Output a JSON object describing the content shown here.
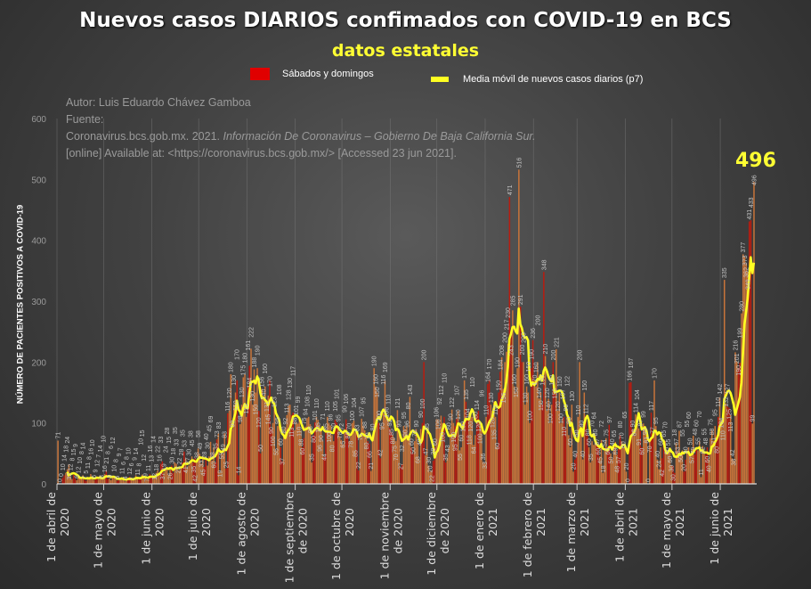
{
  "header": {
    "title": "Nuevos casos DIARIOS confimados con COVID-19 en BCS",
    "subtitle": "datos estatales"
  },
  "legend": {
    "weekend": "Sábados y domingos",
    "moving_avg": "Media móvil de  nuevos casos diarios (p7)"
  },
  "source": {
    "author": "Autor: Luis Eduardo Chávez Gamboa",
    "label": "Fuente:",
    "citation_a": "Coronavirus.bcs.gob.mx. 2021. ",
    "citation_italic": "Información De Coronavirus – Gobierno De Baja California Sur.",
    "citation_b": "[online] Available at: <https://coronavirus.bcs.gob.mx/> [Accessed 23 jun 2021]."
  },
  "annotation": "496",
  "colors": {
    "weekday": "#c8743a",
    "weekend": "#b81c10",
    "line": "#ffff22"
  },
  "chart_data": {
    "type": "bar",
    "title": "Nuevos casos DIARIOS confimados con COVID-19 en BCS",
    "ylabel": "NÚMERO DE PACIENTES POSITIVOS A COVID-19",
    "xlabel": "",
    "ylim": [
      0,
      600
    ],
    "yticks": [
      0,
      100,
      200,
      300,
      400,
      500,
      600
    ],
    "start_date": "2020-04-01",
    "moving_average_window": 7,
    "x_ticks": [
      {
        "day": 0,
        "l1": "1 de abril de",
        "l2": "2020"
      },
      {
        "day": 30,
        "l1": "1 de mayo de",
        "l2": "2020"
      },
      {
        "day": 61,
        "l1": "1 de junio de",
        "l2": "2020"
      },
      {
        "day": 91,
        "l1": "1 de julio de",
        "l2": "2020"
      },
      {
        "day": 122,
        "l1": "1 de agosto de",
        "l2": "2020"
      },
      {
        "day": 153,
        "l1": "1 de septiembre",
        "l2": "de 2020"
      },
      {
        "day": 183,
        "l1": "1 de octubre de",
        "l2": "2020"
      },
      {
        "day": 214,
        "l1": "1 de noviembre",
        "l2": "de 2020"
      },
      {
        "day": 244,
        "l1": "1 de diciembre",
        "l2": "de 2020"
      },
      {
        "day": 275,
        "l1": "1 de enero de",
        "l2": "2021"
      },
      {
        "day": 306,
        "l1": "1 de febrero de",
        "l2": "2021"
      },
      {
        "day": 334,
        "l1": "1 de marzo de",
        "l2": "2021"
      },
      {
        "day": 365,
        "l1": "1 de abril de",
        "l2": "2021"
      },
      {
        "day": 395,
        "l1": "1 de mayo de",
        "l2": "2021"
      },
      {
        "day": 426,
        "l1": "1 de junio de",
        "l2": "2021"
      }
    ],
    "values": [
      71,
      0,
      0,
      10,
      14,
      18,
      24,
      32,
      12,
      8,
      15,
      9,
      6,
      12,
      10,
      8,
      14,
      7,
      5,
      11,
      8,
      16,
      10,
      6,
      9,
      12,
      7,
      14,
      8,
      10,
      16,
      21,
      8,
      9,
      6,
      12,
      10,
      8,
      5,
      9,
      7,
      11,
      6,
      4,
      8,
      10,
      12,
      6,
      7,
      9,
      14,
      11,
      8,
      10,
      15,
      12,
      9,
      7,
      11,
      16,
      13,
      14,
      12,
      18,
      22,
      16,
      33,
      37,
      19,
      24,
      28,
      15,
      26,
      30,
      18,
      35,
      33,
      23,
      22,
      28,
      35,
      53,
      41,
      27,
      30,
      38,
      45,
      35,
      42,
      38,
      58,
      49,
      33,
      45,
      28,
      40,
      30,
      45,
      69,
      38,
      60,
      35,
      73,
      83,
      19,
      55,
      49,
      83,
      25,
      116,
      120,
      180,
      90,
      130,
      150,
      170,
      14,
      98,
      130,
      175,
      180,
      110,
      161,
      194,
      222,
      130,
      188,
      150,
      190,
      120,
      50,
      156,
      140,
      160,
      131,
      145,
      170,
      90,
      100,
      123,
      55,
      95,
      108,
      60,
      37,
      80,
      92,
      113,
      128,
      130,
      113,
      117,
      88,
      101,
      99,
      110,
      88,
      60,
      75,
      94,
      108,
      110,
      98,
      35,
      80,
      101,
      110,
      105,
      96,
      90,
      71,
      44,
      85,
      110,
      100,
      96,
      80,
      70,
      105,
      101,
      95,
      78,
      72,
      65,
      90,
      106,
      80,
      70,
      78,
      100,
      104,
      85,
      83,
      22,
      75,
      107,
      95,
      88,
      80,
      70,
      66,
      21,
      80,
      190,
      160,
      150,
      100,
      42,
      95,
      116,
      169,
      106,
      110,
      92,
      85,
      80,
      75,
      70,
      121,
      90,
      27,
      32,
      95,
      90,
      96,
      80,
      143,
      60,
      50,
      70,
      90,
      68,
      40,
      90,
      100,
      200,
      47,
      85,
      30,
      20,
      22,
      38,
      60,
      106,
      106,
      92,
      112,
      100,
      110,
      35,
      43,
      60,
      90,
      122,
      100,
      95,
      107,
      120,
      55,
      60,
      100,
      170,
      135,
      104,
      118,
      120,
      110,
      64,
      80,
      114,
      120,
      100,
      96,
      36,
      33,
      110,
      164,
      170,
      130,
      120,
      135,
      110,
      60,
      150,
      184,
      208,
      156,
      200,
      217,
      230,
      471,
      243,
      285,
      160,
      150,
      190,
      516,
      291,
      200,
      200,
      130,
      160,
      150,
      100,
      190,
      236,
      170,
      160,
      200,
      140,
      150,
      130,
      348,
      210,
      120,
      140,
      100,
      130,
      200,
      150,
      221,
      120,
      150,
      100,
      107,
      110,
      90,
      122,
      80,
      60,
      130,
      20,
      40,
      50,
      110,
      200,
      90,
      40,
      150,
      112,
      80,
      60,
      35,
      70,
      64,
      80,
      67,
      60,
      45,
      72,
      18,
      54,
      75,
      60,
      97,
      50,
      40,
      65,
      69,
      48,
      57,
      80,
      70,
      60,
      65,
      20,
      0,
      166,
      167,
      90,
      80,
      114,
      104,
      91,
      87,
      60,
      99,
      95,
      81,
      0,
      70,
      117,
      77,
      170,
      95,
      40,
      24,
      60,
      42,
      65,
      70,
      50,
      55,
      60,
      30,
      30,
      18,
      67,
      53,
      87,
      50,
      55,
      20,
      40,
      55,
      60,
      50,
      57,
      79,
      48,
      60,
      55,
      70,
      11,
      62,
      55,
      48,
      60,
      40,
      75,
      88,
      71,
      95,
      80,
      110,
      142,
      104,
      110,
      335,
      132,
      127,
      125,
      113,
      42,
      38,
      216,
      201,
      190,
      199,
      280,
      377,
      373,
      362,
      349,
      431,
      433,
      99,
      496
    ],
    "series": [
      {
        "name": "Sábados y domingos",
        "kind": "bar-highlight"
      },
      {
        "name": "Media móvil de  nuevos casos diarios (p7)",
        "kind": "line"
      }
    ],
    "grid": "vertical at month starts",
    "legend_position": "top-center"
  }
}
